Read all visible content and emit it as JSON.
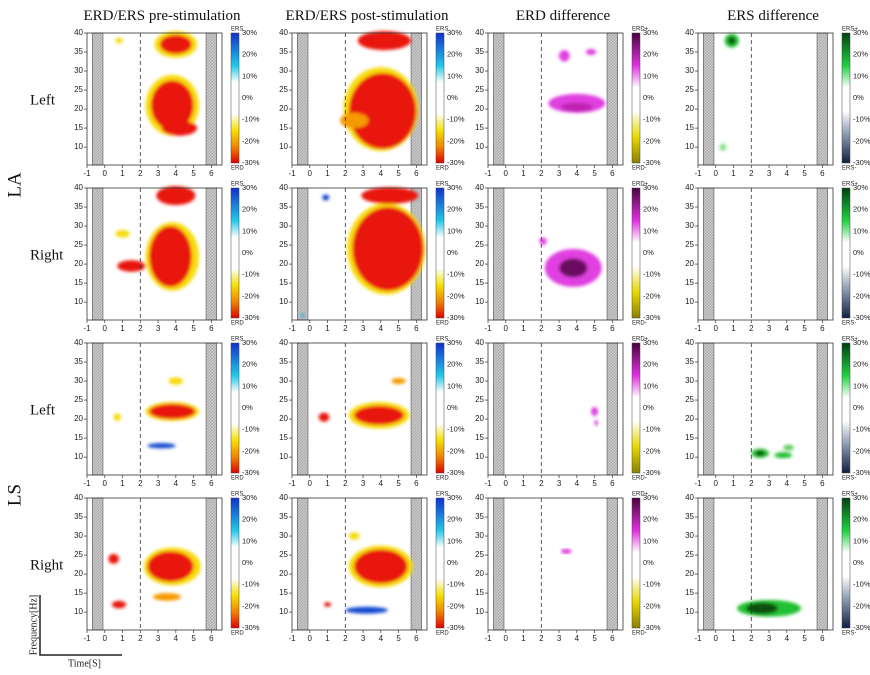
{
  "columns": [
    "ERD/ERS pre-stimulation",
    "ERD/ERS post-stimulation",
    "ERD difference",
    "ERS difference"
  ],
  "groups": [
    "LA",
    "LS"
  ],
  "rows": [
    "Left",
    "Right",
    "Left",
    "Right"
  ],
  "x_ticks": [
    "-1",
    "0",
    "1",
    "2",
    "3",
    "4",
    "5",
    "6"
  ],
  "y_ticks": [
    "10",
    "15",
    "20",
    "25",
    "30",
    "35",
    "40"
  ],
  "colorbar_ticks": [
    "30%",
    "20%",
    "10%",
    "0%",
    "-10%",
    "-20%",
    "-30%"
  ],
  "colorbar_ends": [
    [
      "ERS",
      "ERD"
    ],
    [
      "ERS",
      "ERD"
    ],
    [
      "ERD+",
      "ERD-"
    ],
    [
      "ERS+",
      "ERS-"
    ]
  ],
  "y_axis_label": "Frequency[Hz]",
  "x_axis_label": "Time[S]"
}
